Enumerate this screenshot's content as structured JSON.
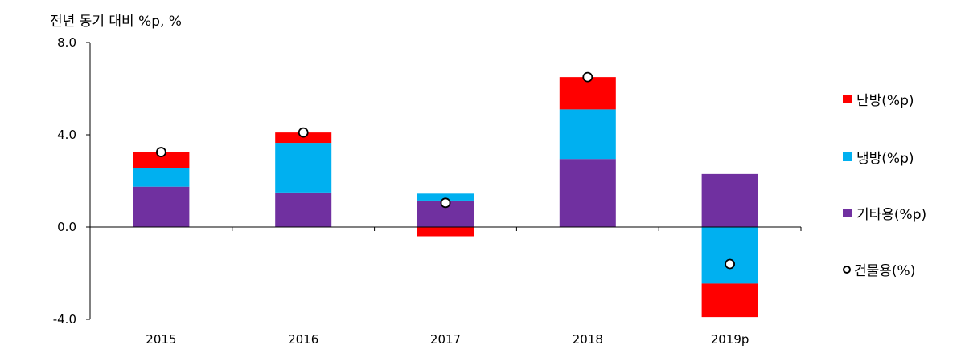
{
  "unit_label": "전년 동기 대비 %p, %",
  "chart_data": {
    "type": "bar",
    "stacked": true,
    "categories": [
      "2015",
      "2016",
      "2017",
      "2018",
      "2019p"
    ],
    "ylim": [
      -4.0,
      8.0
    ],
    "yticks": [
      "8.0",
      "4.0",
      "0.0",
      "-4.0"
    ],
    "ytick_values": [
      8.0,
      4.0,
      0.0,
      -4.0
    ],
    "series": [
      {
        "name": "기타용(%p)",
        "color": "#7030A0",
        "values": [
          1.75,
          1.5,
          1.15,
          2.95,
          2.3
        ]
      },
      {
        "name": "냉방(%p)",
        "color": "#00B0F0",
        "values": [
          0.8,
          2.15,
          0.3,
          2.15,
          -2.45
        ]
      },
      {
        "name": "난방(%p)",
        "color": "#FF0000",
        "values": [
          0.7,
          0.45,
          -0.4,
          1.4,
          -1.45
        ]
      }
    ],
    "line_series": {
      "name": "건물용(%)",
      "values": [
        3.25,
        4.1,
        1.05,
        6.5,
        -1.6
      ]
    },
    "legend_position": "right",
    "grid": false
  },
  "legend": [
    {
      "label": "난방(%p)",
      "color": "#FF0000",
      "kind": "square"
    },
    {
      "label": "냉방(%p)",
      "color": "#00B0F0",
      "kind": "square"
    },
    {
      "label": "기타용(%p)",
      "color": "#7030A0",
      "kind": "square"
    },
    {
      "label": "건물용(%)",
      "color": "#ffffff",
      "kind": "circle"
    }
  ]
}
